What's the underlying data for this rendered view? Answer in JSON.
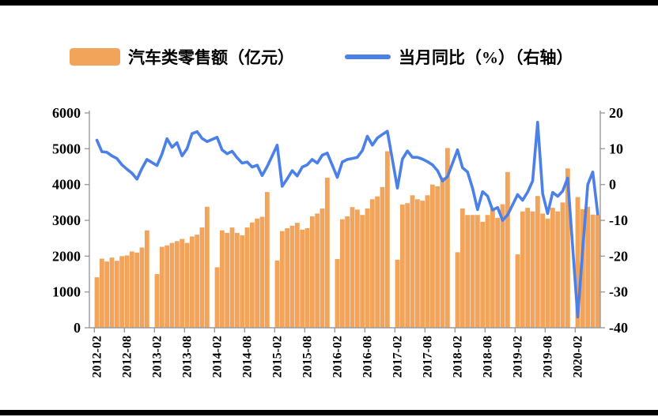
{
  "legend": {
    "bar_label": "汽车类零售额（亿元）",
    "line_label": "当月同比（%）（右轴）"
  },
  "colors": {
    "bar": "#F2A45A",
    "line": "#4A80E8",
    "axis": "#9B9B9B",
    "frame_rule": "#000000"
  },
  "chart_data": {
    "type": "bar+line",
    "title": "",
    "xlabel": "",
    "ylabel_left": "汽车类零售额（亿元）",
    "ylabel_right": "当月同比（%）",
    "start_month": "2012-01",
    "months_per_year_note": "January values are null (NBS combines Jan-Feb); index 0 = 2012-01, monthly steps to 2020-06",
    "left_axis": {
      "min": 0,
      "max": 6000,
      "ticks": [
        "6000",
        "5000",
        "4000",
        "3000",
        "2000",
        "1000",
        "0"
      ]
    },
    "right_axis": {
      "min": -40,
      "max": 20,
      "ticks": [
        "20",
        "10",
        "0",
        "-10",
        "-20",
        "-30",
        "-40"
      ]
    },
    "x_tick_labels": [
      "2012-02",
      "2012-08",
      "2013-02",
      "2013-08",
      "2014-02",
      "2014-08",
      "2015-02",
      "2015-08",
      "2016-02",
      "2016-08",
      "2017-02",
      "2017-08",
      "2018-02",
      "2018-08",
      "2019-02",
      "2019-08",
      "2020-02"
    ],
    "x_tick_slot_indices": [
      1,
      7,
      13,
      19,
      25,
      31,
      37,
      43,
      49,
      55,
      61,
      67,
      73,
      79,
      85,
      91,
      97
    ],
    "legend_position": "top",
    "grid": false,
    "series": [
      {
        "name": "汽车类零售额（亿元）",
        "type": "bar",
        "axis": "left",
        "color": "#F2A45A",
        "values": [
          null,
          1410,
          1930,
          1850,
          1960,
          1870,
          2000,
          2020,
          2130,
          2100,
          2240,
          2720,
          null,
          1500,
          2260,
          2300,
          2370,
          2420,
          2480,
          2370,
          2550,
          2600,
          2800,
          3380,
          null,
          1690,
          2720,
          2650,
          2800,
          2650,
          2580,
          2800,
          2940,
          3050,
          3100,
          3790,
          null,
          1880,
          2700,
          2780,
          2850,
          2930,
          2740,
          2780,
          3110,
          3190,
          3330,
          4190,
          null,
          1920,
          3030,
          3110,
          3370,
          3300,
          3150,
          3330,
          3590,
          3670,
          3930,
          4930,
          null,
          1900,
          3440,
          3480,
          3700,
          3590,
          3550,
          3700,
          4000,
          3950,
          4200,
          5020,
          null,
          2110,
          3330,
          3150,
          3150,
          3150,
          2960,
          3150,
          3330,
          3070,
          3450,
          4350,
          null,
          2050,
          3250,
          3350,
          3250,
          3680,
          3190,
          3050,
          3350,
          3250,
          3500,
          4450,
          null,
          3650,
          3310,
          3380,
          3160,
          3160
        ]
      },
      {
        "name": "当月同比（%）（右轴）",
        "type": "line",
        "axis": "right",
        "color": "#4A80E8",
        "values": [
          null,
          12.4,
          9.2,
          9.0,
          8.0,
          7.3,
          5.5,
          4.3,
          3.2,
          1.5,
          4.5,
          7.0,
          null,
          5.3,
          8.5,
          12.8,
          10.4,
          11.7,
          8.0,
          10.0,
          14.2,
          14.8,
          12.9,
          12.0,
          null,
          13.2,
          9.7,
          8.6,
          9.3,
          7.5,
          6.0,
          6.3,
          4.9,
          5.4,
          2.5,
          5.0,
          null,
          11.0,
          -0.5,
          1.6,
          3.9,
          2.4,
          4.9,
          5.5,
          7.0,
          6.0,
          8.2,
          8.8,
          null,
          2.0,
          6.3,
          7.0,
          7.3,
          7.6,
          9.5,
          13.5,
          11.0,
          13.0,
          14.0,
          14.9,
          null,
          -1.0,
          7.1,
          9.4,
          7.6,
          7.6,
          7.1,
          6.4,
          5.5,
          3.9,
          1.0,
          2.2,
          null,
          9.7,
          4.7,
          3.5,
          -1.0,
          -7.0,
          -2.0,
          -3.2,
          -7.1,
          -6.4,
          -10.0,
          -8.5,
          null,
          -2.8,
          -4.4,
          -2.1,
          1.0,
          17.4,
          -2.6,
          -8.1,
          -2.2,
          -3.3,
          -1.8,
          1.8,
          null,
          -37.0,
          -18.1,
          0.0,
          3.5,
          -8.2
        ]
      }
    ]
  }
}
